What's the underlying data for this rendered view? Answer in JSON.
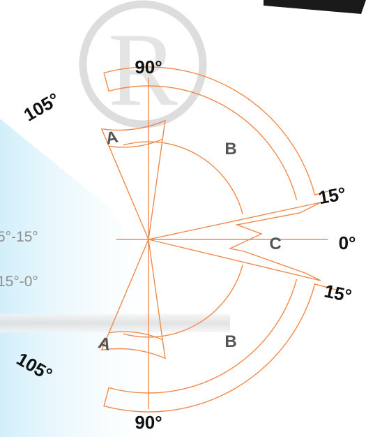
{
  "colors": {
    "line": "#f08a4b",
    "text": "#111111",
    "zone_text": "#555555",
    "watermark": "#c8c8c8",
    "left_band": "#d3f1fb",
    "corner_panel": "#1a1a1a"
  },
  "diagram": {
    "labels": {
      "top": "90°",
      "bottom": "90°",
      "upper_left": "105°",
      "lower_left": "105°",
      "upper_right": "15°",
      "lower_right": "15°",
      "right": "0°"
    },
    "zones": {
      "a_top": "A",
      "a_bottom": "A",
      "b_top": "B",
      "b_bottom": "B",
      "c": "C"
    }
  },
  "background": {
    "logo_letter": "R",
    "left_text_1": "5°-15°",
    "left_text_2": "15°-0°"
  }
}
